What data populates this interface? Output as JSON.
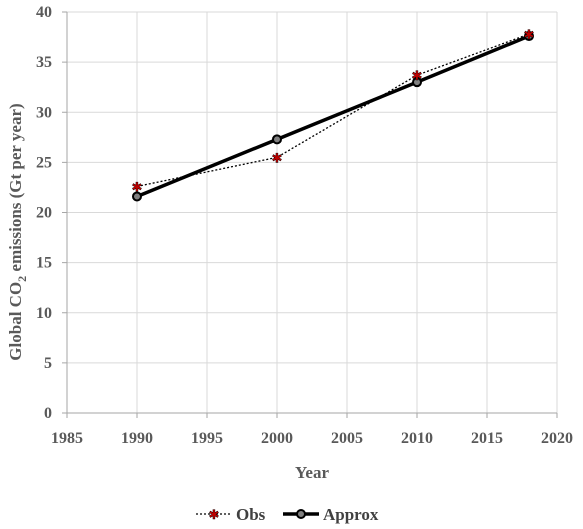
{
  "chart_data": {
    "type": "line",
    "xlabel": "Year",
    "ylabel_parts": {
      "pre": "Global CO",
      "sub": "2",
      "post": " emissions (Gt per year)"
    },
    "xlim": [
      1985,
      2020
    ],
    "ylim": [
      0,
      40
    ],
    "xticks": [
      "1985",
      "1990",
      "1995",
      "2000",
      "2005",
      "2010",
      "2015",
      "2020"
    ],
    "yticks": [
      "0",
      "5",
      "10",
      "15",
      "20",
      "25",
      "30",
      "35",
      "40"
    ],
    "grid": true,
    "legend_position": "bottom",
    "series": [
      {
        "name": "Obs",
        "style": "dotted",
        "marker": "star",
        "color": "#000000",
        "marker_color": "#c00000",
        "x": [
          1990,
          2000,
          2010,
          2018
        ],
        "y": [
          22.6,
          25.5,
          33.7,
          37.8
        ]
      },
      {
        "name": "Approx",
        "style": "solid",
        "marker": "circle",
        "color": "#000000",
        "x": [
          1990,
          2000,
          2010,
          2018
        ],
        "y": [
          21.6,
          27.3,
          33.0,
          37.6
        ]
      }
    ]
  }
}
